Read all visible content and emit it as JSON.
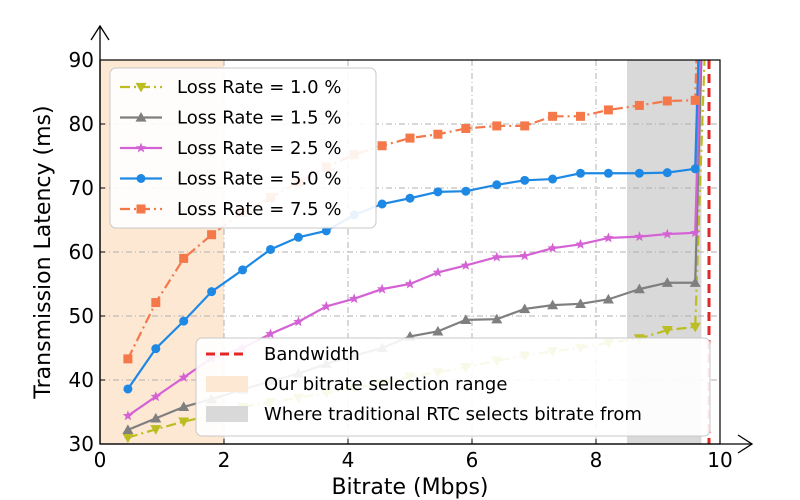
{
  "chart_data": {
    "type": "line",
    "xlabel": "Bitrate (Mbps)",
    "ylabel": "Transmission Latency (ms)",
    "xlim": [
      0,
      10
    ],
    "ylim": [
      30,
      90
    ],
    "xticks": [
      0,
      2,
      4,
      6,
      8,
      10
    ],
    "yticks": [
      30,
      40,
      50,
      60,
      70,
      80,
      90
    ],
    "grid": true,
    "x": [
      0.45,
      0.9,
      1.35,
      1.8,
      2.3,
      2.75,
      3.2,
      3.65,
      4.1,
      4.55,
      5.0,
      5.45,
      5.9,
      6.4,
      6.85,
      7.3,
      7.75,
      8.2,
      8.7,
      9.15,
      9.6
    ],
    "series": [
      {
        "name": "Loss Rate = 1.0 %",
        "color": "#bcbd22",
        "marker": "triangle-down",
        "dash": "dashdot",
        "values": [
          31,
          32.3,
          33.5,
          34.5,
          35.8,
          36.5,
          37.2,
          38,
          38.8,
          39.5,
          40.5,
          41.2,
          42,
          43,
          43.8,
          44.5,
          45,
          45.8,
          46.5,
          47.8,
          48.3
        ],
        "spike": [
          [
            9.75,
            90
          ]
        ]
      },
      {
        "name": "Loss Rate = 1.5 %",
        "color": "#7f7f7f",
        "marker": "triangle-up",
        "dash": "solid",
        "values": [
          32.2,
          34,
          35.8,
          37,
          38.5,
          39.8,
          41,
          42.5,
          43.8,
          45,
          46.8,
          47.6,
          49.4,
          49.5,
          51.1,
          51.7,
          51.9,
          52.6,
          54.2,
          55.2,
          55.2
        ],
        "spike": [
          [
            9.7,
            90
          ]
        ]
      },
      {
        "name": "Loss Rate = 2.5 %",
        "color": "#d462d4",
        "marker": "star",
        "dash": "solid",
        "values": [
          34.4,
          37.4,
          40.4,
          43.4,
          45,
          47.2,
          49.1,
          51.5,
          52.7,
          54.2,
          55,
          56.8,
          57.9,
          59.2,
          59.4,
          60.6,
          61.2,
          62.2,
          62.4,
          62.8,
          63
        ],
        "spike": [
          [
            9.68,
            90
          ]
        ]
      },
      {
        "name": "Loss Rate = 5.0 %",
        "color": "#1e88e5",
        "marker": "circle",
        "dash": "solid",
        "values": [
          38.6,
          44.9,
          49.2,
          53.8,
          57.2,
          60.4,
          62.3,
          63.3,
          65.8,
          67.5,
          68.4,
          69.4,
          69.5,
          70.5,
          71.2,
          71.4,
          72.3,
          72.3,
          72.3,
          72.4,
          73
        ],
        "spike": [
          [
            9.65,
            90
          ]
        ]
      },
      {
        "name": "Loss Rate = 7.5 %",
        "color": "#f4784a",
        "marker": "square",
        "dash": "dashdot",
        "values": [
          43.3,
          52.1,
          59,
          62.7,
          66.2,
          68.5,
          70.9,
          73.3,
          75.2,
          76.6,
          77.8,
          78.4,
          79.3,
          79.7,
          79.7,
          81.2,
          81.2,
          82.2,
          82.9,
          83.6,
          83.7
        ],
        "spike": [
          [
            9.62,
            90
          ]
        ]
      }
    ],
    "bandwidth": {
      "label": "Bandwidth",
      "x": 10,
      "color": "#e32626"
    },
    "regions": [
      {
        "label": "Our bitrate selection range",
        "x0": 0,
        "x1": 2,
        "color": "#fde8d4"
      },
      {
        "label": "Where traditional RTC selects bitrate from",
        "x0": 8.5,
        "x1": 9.7,
        "color": "#d9d9d9"
      }
    ]
  }
}
